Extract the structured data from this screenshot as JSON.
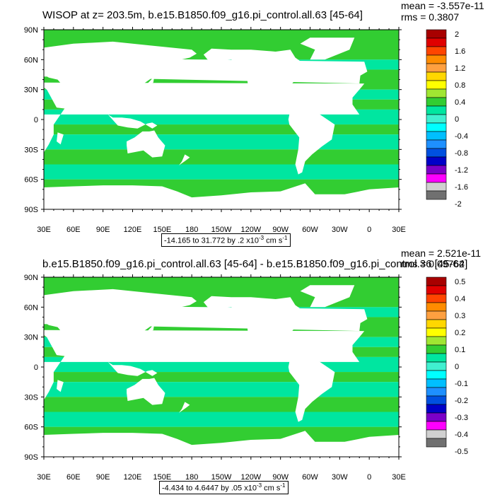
{
  "panels": [
    {
      "title": "WISOP at z= 203.5m, b.e15.B1850.f09_g16.pi_control.all.63 [45-64]",
      "mean_label": "mean = -3.557e-11",
      "rms_label": "rms = 0.3807",
      "range_text": "-14.165 to 31.772 by .2",
      "range_exp": "-3",
      "range_units": "cm s",
      "range_units_exp": "-1",
      "colorbar_labels": [
        "2",
        "1.6",
        "1.2",
        "0.8",
        "0.4",
        "0",
        "-0.4",
        "-0.8",
        "-1.2",
        "-1.6",
        "-2"
      ]
    },
    {
      "title": "b.e15.B1850.f09_g16.pi_control.all.63 [45-64] - b.e15.B1850.f09_g16.pi_control.36 [45-64]",
      "mean_label": "mean = 2.521e-11",
      "rms_label": "rms = 0.09762",
      "range_text": "-4.434 to 4.6447 by .05",
      "range_exp": "-3",
      "range_units": "cm s",
      "range_units_exp": "-1",
      "colorbar_labels": [
        "0.5",
        "0.4",
        "0.3",
        "0.2",
        "0.1",
        "0",
        "-0.1",
        "-0.2",
        "-0.3",
        "-0.4",
        "-0.5"
      ]
    }
  ],
  "lat_labels": [
    "90N",
    "60N",
    "30N",
    "0",
    "30S",
    "60S",
    "90S"
  ],
  "lon_labels": [
    "30E",
    "60E",
    "90E",
    "120E",
    "150E",
    "180",
    "150W",
    "120W",
    "90W",
    "60W",
    "30W",
    "0",
    "30E"
  ],
  "colorbar_colors": [
    "#a80000",
    "#e00000",
    "#ff4500",
    "#ff8c00",
    "#ffa040",
    "#ffd700",
    "#ffff00",
    "#a0e632",
    "#32cd32",
    "#00e6a0",
    "#40f0d0",
    "#00ffff",
    "#00bfff",
    "#1e90ff",
    "#0050e0",
    "#0000c8",
    "#7b00c8",
    "#ff00ff",
    "#d0d0d0",
    "#707070"
  ],
  "field_colors": {
    "ocean_green": "#32cd32",
    "ocean_teal": "#00e6a0",
    "land": "#ffffff"
  }
}
